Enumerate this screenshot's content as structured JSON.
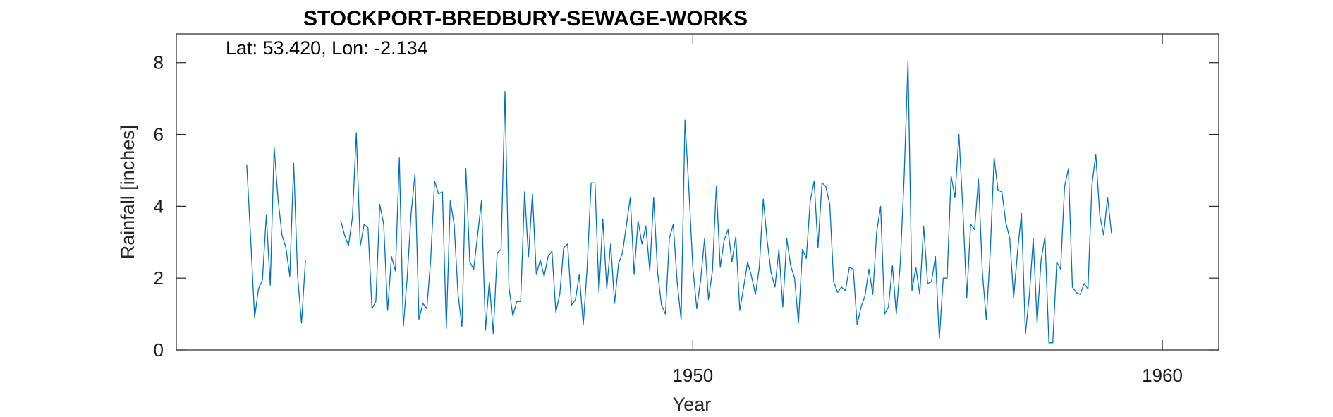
{
  "chart_data": {
    "type": "line",
    "title": "STOCKPORT-BREDBURY-SEWAGE-WORKS",
    "xlabel": "Year",
    "ylabel": "Rainfall [inches]",
    "annotation": "Lat: 53.420, Lon: -2.134",
    "xlim": [
      1939.0,
      1961.2
    ],
    "ylim": [
      0,
      8.8
    ],
    "xticks": [
      1950,
      1960
    ],
    "yticks": [
      0,
      2,
      4,
      6,
      8
    ],
    "grid": false,
    "line_color": "#0072BD",
    "start_year": 1940.5,
    "step": 0.08333,
    "series": [
      {
        "values": [
          5.15,
          3.1,
          0.9,
          1.7,
          1.95,
          3.75,
          1.8,
          5.65,
          4.2,
          3.2,
          2.85,
          2.05,
          5.2,
          2.05,
          0.75,
          2.5,
          null,
          null,
          null,
          null,
          null,
          null,
          null,
          null,
          3.6,
          3.2,
          2.9,
          3.7,
          6.05,
          2.9,
          3.5,
          3.4,
          1.15,
          1.35,
          4.05,
          3.5,
          1.1,
          2.6,
          2.2,
          5.35,
          0.65,
          2.0,
          3.8,
          4.9,
          0.85,
          1.3,
          1.15,
          2.5,
          4.7,
          4.35,
          4.4,
          0.6,
          4.15,
          3.5,
          1.55,
          0.65,
          5.05,
          2.45,
          2.25,
          3.2,
          4.15,
          0.55,
          1.9,
          0.45,
          2.7,
          2.8,
          7.2,
          1.75,
          0.95,
          1.35,
          1.35,
          4.4,
          2.6,
          4.35,
          2.1,
          2.5,
          2.05,
          2.6,
          2.75,
          1.05,
          1.55,
          2.85,
          2.95,
          1.25,
          1.4,
          2.1,
          0.7,
          2.3,
          4.65,
          4.65,
          1.6,
          3.65,
          1.7,
          2.95,
          1.3,
          2.4,
          2.7,
          3.45,
          4.25,
          2.1,
          3.6,
          2.95,
          3.45,
          2.2,
          4.25,
          2.15,
          1.25,
          1.0,
          3.1,
          3.5,
          1.9,
          0.85,
          6.4,
          4.45,
          2.3,
          1.15,
          1.95,
          3.1,
          1.4,
          2.2,
          4.55,
          2.3,
          3.05,
          3.35,
          2.45,
          3.15,
          1.1,
          1.75,
          2.45,
          2.05,
          1.55,
          2.3,
          4.2,
          3.05,
          2.15,
          1.75,
          2.8,
          1.2,
          3.1,
          2.35,
          2.0,
          0.75,
          2.8,
          2.55,
          4.15,
          4.7,
          2.85,
          4.65,
          4.55,
          4.05,
          1.9,
          1.6,
          1.75,
          1.65,
          2.3,
          2.25,
          0.7,
          1.2,
          1.5,
          2.25,
          1.55,
          3.3,
          4.0,
          1.0,
          1.2,
          2.35,
          1.0,
          2.4,
          4.8,
          8.05,
          1.65,
          2.3,
          1.55,
          3.45,
          1.85,
          1.9,
          2.6,
          0.3,
          2.0,
          2.0,
          4.85,
          4.25,
          6.0,
          3.95,
          1.45,
          3.5,
          3.35,
          4.75,
          2.15,
          0.85,
          2.7,
          5.35,
          4.45,
          4.4,
          3.55,
          3.1,
          1.45,
          2.75,
          3.8,
          0.45,
          1.5,
          3.1,
          0.75,
          2.5,
          3.15,
          0.2,
          0.2,
          2.45,
          2.25,
          4.55,
          5.05,
          1.75,
          1.6,
          1.55,
          1.85,
          1.7,
          4.6,
          5.45,
          3.75,
          3.2,
          4.25,
          3.25
        ]
      }
    ]
  }
}
